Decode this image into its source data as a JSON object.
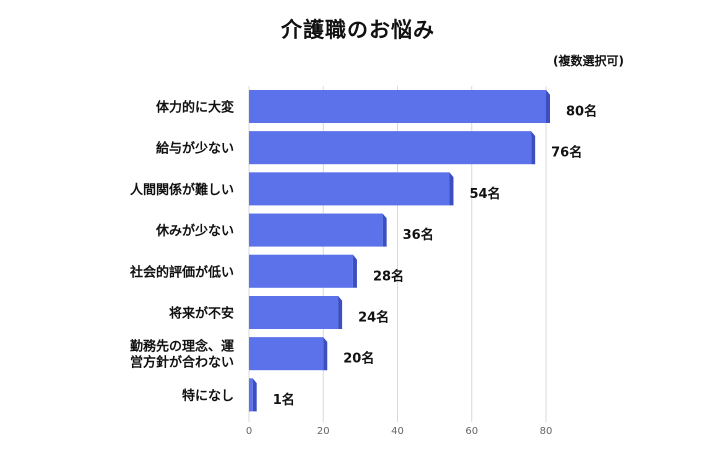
{
  "chart_data": {
    "type": "bar",
    "orientation": "horizontal",
    "title": "介護職のお悩み",
    "note": "(複数選択可)",
    "categories": [
      "体力的に大変",
      "給与が少ない",
      "人間関係が難しい",
      "休みが少ない",
      "社会的評価が低い",
      "将来が不安",
      "勤務先の理念、運営方針が合わない",
      "特になし"
    ],
    "category_lines": [
      [
        "体力的に大変"
      ],
      [
        "給与が少ない"
      ],
      [
        "人間関係が難しい"
      ],
      [
        "休みが少ない"
      ],
      [
        "社会的評価が低い"
      ],
      [
        "将来が不安"
      ],
      [
        "勤務先の理念、運",
        "営方針が合わない"
      ],
      [
        "特になし"
      ]
    ],
    "values": [
      80,
      76,
      54,
      36,
      28,
      24,
      20,
      1
    ],
    "value_labels": [
      "80名",
      "76名",
      "54名",
      "36名",
      "28名",
      "24名",
      "20名",
      "1名"
    ],
    "xlim": [
      0,
      80
    ],
    "xticks": [
      0,
      20,
      40,
      60,
      80
    ],
    "xlabel": "",
    "ylabel": "",
    "grid": true,
    "bar_color": "#5b72ea",
    "bar_side_color": "#3b4fc0",
    "bar_top_color": "#8f9ff2"
  }
}
